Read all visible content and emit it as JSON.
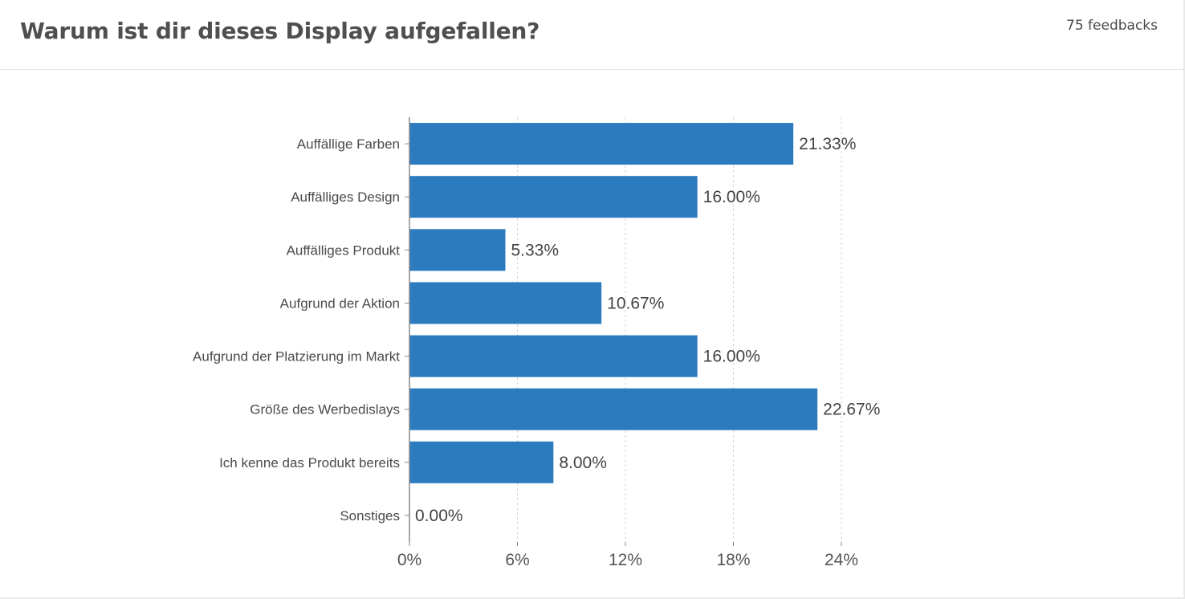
{
  "header": {
    "title": "Warum ist dir dieses Display aufgefallen?",
    "feedback_count": "75 feedbacks"
  },
  "colors": {
    "bar": "#2c7bbf",
    "grid": "#d6d6d6",
    "axis": "#8a8a8a"
  },
  "chart_data": {
    "type": "bar",
    "orientation": "horizontal",
    "categories": [
      "Auffällige Farben",
      "Auffälliges Design",
      "Auffälliges Produkt",
      "Aufgrund der Aktion",
      "Aufgrund der Platzierung im Markt",
      "Größe des Werbedislays",
      "Ich kenne das Produkt bereits",
      "Sonstiges"
    ],
    "values": [
      21.33,
      16.0,
      5.33,
      10.67,
      16.0,
      22.67,
      8.0,
      0.0
    ],
    "value_labels": [
      "21.33%",
      "16.00%",
      "5.33%",
      "10.67%",
      "16.00%",
      "22.67%",
      "8.00%",
      "0.00%"
    ],
    "xlim": [
      0,
      24
    ],
    "x_ticks": [
      0,
      6,
      12,
      18,
      24
    ],
    "x_tick_labels": [
      "0%",
      "6%",
      "12%",
      "18%",
      "24%"
    ],
    "grid": true
  }
}
